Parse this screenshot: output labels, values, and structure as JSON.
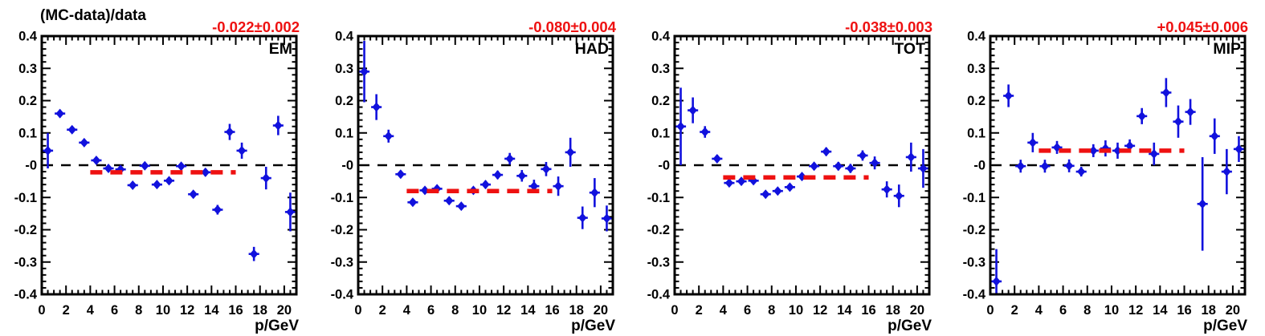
{
  "title": "(MC-data)/data",
  "colors": {
    "marker": "#1111dd",
    "error_bar": "#1111dd",
    "fit_line": "#ee1111",
    "fit_text": "#ee1111",
    "axis": "#000000",
    "zero_line": "#000000",
    "tick_label": "#000000",
    "panel_label": "#000000",
    "background": "#ffffff"
  },
  "axes": {
    "xlabel": "p/GeV",
    "xlim": [
      0,
      21
    ],
    "ylim": [
      -0.4,
      0.4
    ],
    "x_tick_values": [
      0,
      2,
      4,
      6,
      8,
      10,
      12,
      14,
      16,
      18,
      20
    ],
    "x_tick_labels": [
      "0",
      "2",
      "4",
      "6",
      "8",
      "10",
      "12",
      "14",
      "16",
      "18",
      "20"
    ],
    "x_minor_step": 0.5,
    "y_tick_values": [
      0.4,
      0.3,
      0.2,
      0.1,
      0.0,
      -0.1,
      -0.2,
      -0.3,
      -0.4
    ],
    "y_tick_labels": [
      "0.4",
      "0.3",
      "0.2",
      "0.1",
      "-0",
      "-0.1",
      "-0.2",
      "-0.3",
      "-0.4"
    ],
    "y_minor_step": 0.02,
    "zero_line_y": 0,
    "grid": false
  },
  "chart_data": [
    {
      "type": "scatter",
      "name": "EM",
      "fit_label": "-0.022±0.002",
      "fit_value": -0.022,
      "fit_range": [
        4.0,
        16.0
      ],
      "ex": 0.5,
      "x": [
        0.5,
        1.5,
        2.5,
        3.5,
        4.5,
        5.5,
        6.5,
        7.5,
        8.5,
        9.5,
        10.5,
        11.5,
        12.5,
        13.5,
        14.5,
        15.5,
        16.5,
        17.5,
        18.5,
        19.5,
        20.5
      ],
      "y": [
        0.045,
        0.16,
        0.11,
        0.07,
        0.015,
        -0.01,
        -0.013,
        -0.062,
        -0.002,
        -0.06,
        -0.048,
        -0.003,
        -0.09,
        -0.022,
        -0.138,
        0.103,
        0.045,
        -0.275,
        -0.04,
        0.123,
        -0.145
      ],
      "ey": [
        0.055,
        0.012,
        0.01,
        0.008,
        0.008,
        0.007,
        0.007,
        0.007,
        0.007,
        0.007,
        0.008,
        0.009,
        0.01,
        0.012,
        0.015,
        0.025,
        0.025,
        0.022,
        0.035,
        0.03,
        0.06
      ]
    },
    {
      "type": "scatter",
      "name": "HAD",
      "fit_label": "-0.080±0.004",
      "fit_value": -0.08,
      "fit_range": [
        4.0,
        16.0
      ],
      "ex": 0.5,
      "x": [
        0.5,
        1.5,
        2.5,
        3.5,
        4.5,
        5.5,
        6.5,
        7.5,
        8.5,
        9.5,
        10.5,
        11.5,
        12.5,
        13.5,
        14.5,
        15.5,
        16.5,
        17.5,
        18.5,
        19.5,
        20.5
      ],
      "y": [
        0.29,
        0.18,
        0.09,
        -0.028,
        -0.115,
        -0.078,
        -0.073,
        -0.11,
        -0.127,
        -0.078,
        -0.06,
        -0.03,
        0.02,
        -0.033,
        -0.065,
        -0.012,
        -0.065,
        0.04,
        -0.163,
        -0.085,
        -0.165
      ],
      "ey": [
        0.095,
        0.04,
        0.02,
        0.012,
        0.01,
        0.009,
        0.009,
        0.009,
        0.009,
        0.01,
        0.012,
        0.013,
        0.018,
        0.018,
        0.02,
        0.022,
        0.03,
        0.045,
        0.035,
        0.045,
        0.04
      ]
    },
    {
      "type": "scatter",
      "name": "TOT",
      "fit_label": "-0.038±0.003",
      "fit_value": -0.038,
      "fit_range": [
        4.0,
        16.0
      ],
      "ex": 0.5,
      "x": [
        0.5,
        1.5,
        2.5,
        3.5,
        4.5,
        5.5,
        6.5,
        7.5,
        8.5,
        9.5,
        10.5,
        11.5,
        12.5,
        13.5,
        14.5,
        15.5,
        16.5,
        17.5,
        18.5,
        19.5,
        20.5
      ],
      "y": [
        0.12,
        0.17,
        0.103,
        0.02,
        -0.055,
        -0.05,
        -0.048,
        -0.09,
        -0.08,
        -0.068,
        -0.035,
        -0.003,
        0.042,
        -0.003,
        -0.01,
        0.03,
        0.007,
        -0.075,
        -0.095,
        0.025,
        -0.01
      ],
      "ey": [
        0.12,
        0.04,
        0.018,
        0.012,
        0.008,
        0.008,
        0.008,
        0.008,
        0.008,
        0.009,
        0.01,
        0.011,
        0.013,
        0.013,
        0.014,
        0.016,
        0.02,
        0.025,
        0.035,
        0.045,
        0.06
      ]
    },
    {
      "type": "scatter",
      "name": "MIP",
      "fit_label": "+0.045±0.006",
      "fit_value": 0.045,
      "fit_range": [
        4.0,
        16.0
      ],
      "ex": 0.5,
      "x": [
        0.5,
        1.5,
        2.5,
        3.5,
        4.5,
        5.5,
        6.5,
        7.5,
        8.5,
        9.5,
        10.5,
        11.5,
        12.5,
        13.5,
        14.5,
        15.5,
        16.5,
        17.5,
        18.5,
        19.5,
        20.5
      ],
      "y": [
        -0.36,
        0.215,
        -0.003,
        0.07,
        -0.003,
        0.055,
        -0.002,
        -0.02,
        0.045,
        0.052,
        0.045,
        0.06,
        0.152,
        0.035,
        0.225,
        0.135,
        0.165,
        -0.12,
        0.09,
        -0.02,
        0.05
      ],
      "ey": [
        0.1,
        0.035,
        0.02,
        0.03,
        0.02,
        0.02,
        0.02,
        0.015,
        0.02,
        0.025,
        0.025,
        0.02,
        0.025,
        0.035,
        0.045,
        0.05,
        0.04,
        0.145,
        0.055,
        0.07,
        0.04
      ]
    }
  ]
}
